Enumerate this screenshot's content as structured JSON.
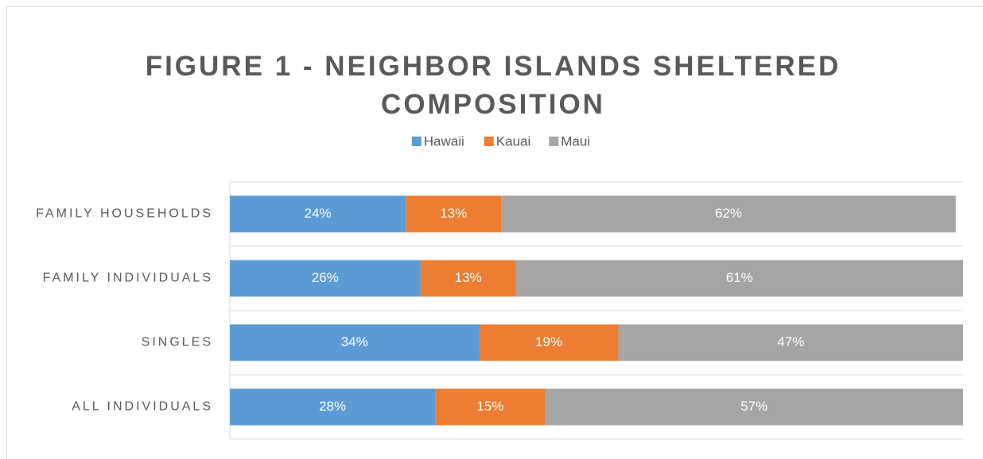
{
  "chart_data": {
    "type": "stacked_bar_horizontal",
    "title": "FIGURE 1 - NEIGHBOR ISLANDS SHELTERED COMPOSITION",
    "categories": [
      "FAMILY HOUSEHOLDS",
      "FAMILY INDIVIDUALS",
      "SINGLES",
      "ALL INDIVIDUALS"
    ],
    "series": [
      {
        "name": "Hawaii",
        "color": "#5b9bd5",
        "values": [
          24,
          26,
          34,
          28
        ]
      },
      {
        "name": "Kauai",
        "color": "#ed7d31",
        "values": [
          13,
          13,
          19,
          15
        ]
      },
      {
        "name": "Maui",
        "color": "#a5a5a5",
        "values": [
          62,
          61,
          47,
          57
        ]
      }
    ],
    "value_labels": [
      [
        "24%",
        "26%",
        "34%",
        "28%"
      ],
      [
        "13%",
        "13%",
        "19%",
        "15%"
      ],
      [
        "62%",
        "61%",
        "47%",
        "57%"
      ]
    ],
    "xlim": [
      0,
      100
    ],
    "legend": "top"
  }
}
